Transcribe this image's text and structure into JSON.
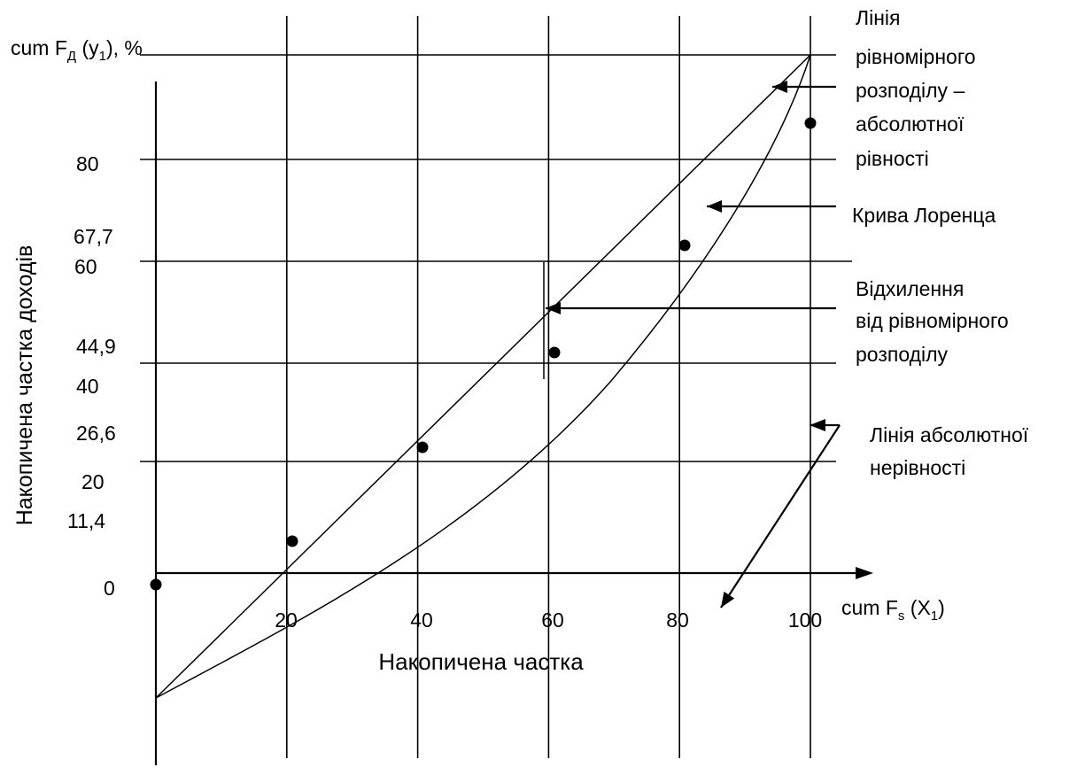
{
  "chart_data": {
    "type": "line",
    "title": "",
    "y_axis_title": "cum F",
    "y_axis_title_sub": "Д",
    "y_axis_title_rest": " (y",
    "y_axis_title_rest_sub": "1",
    "y_axis_title_tail": "), %",
    "x_axis_title": "cum F",
    "x_axis_title_sub": "s",
    "x_axis_title_rest": " (X",
    "x_axis_title_rest_sub": "1",
    "x_axis_title_tail": ")",
    "ylabel": "Накопичена частка доходів",
    "xlabel": "Накопичена частка",
    "x_ticks": [
      "20",
      "40",
      "60",
      "80",
      "100"
    ],
    "y_ticks": [
      "0",
      "11,4",
      "20",
      "26,6",
      "40",
      "44,9",
      "60",
      "67,7",
      "80"
    ],
    "xlim": [
      0,
      100
    ],
    "ylim": [
      0,
      100
    ],
    "grid": true,
    "series": [
      {
        "name": "Лінія рівномірного розподілу – абсолютної рівності",
        "x": [
          0,
          100
        ],
        "y": [
          0,
          100
        ]
      },
      {
        "name": "Крива Лоренца",
        "x": [
          0,
          20,
          40,
          60,
          80,
          100
        ],
        "y": [
          0,
          11.4,
          26.6,
          44.9,
          67.7,
          100
        ]
      }
    ],
    "annotations": [
      {
        "text": [
          "Лінія",
          "рівномірного",
          "розподілу      –",
          "абсолютної",
          "рівності"
        ]
      },
      {
        "text": [
          "Крива Лоренца"
        ]
      },
      {
        "text": [
          "Відхилення",
          "від рівномірного",
          "розподілу"
        ]
      },
      {
        "text": [
          "Лінія абсолютної",
          "нерівності"
        ]
      }
    ]
  }
}
